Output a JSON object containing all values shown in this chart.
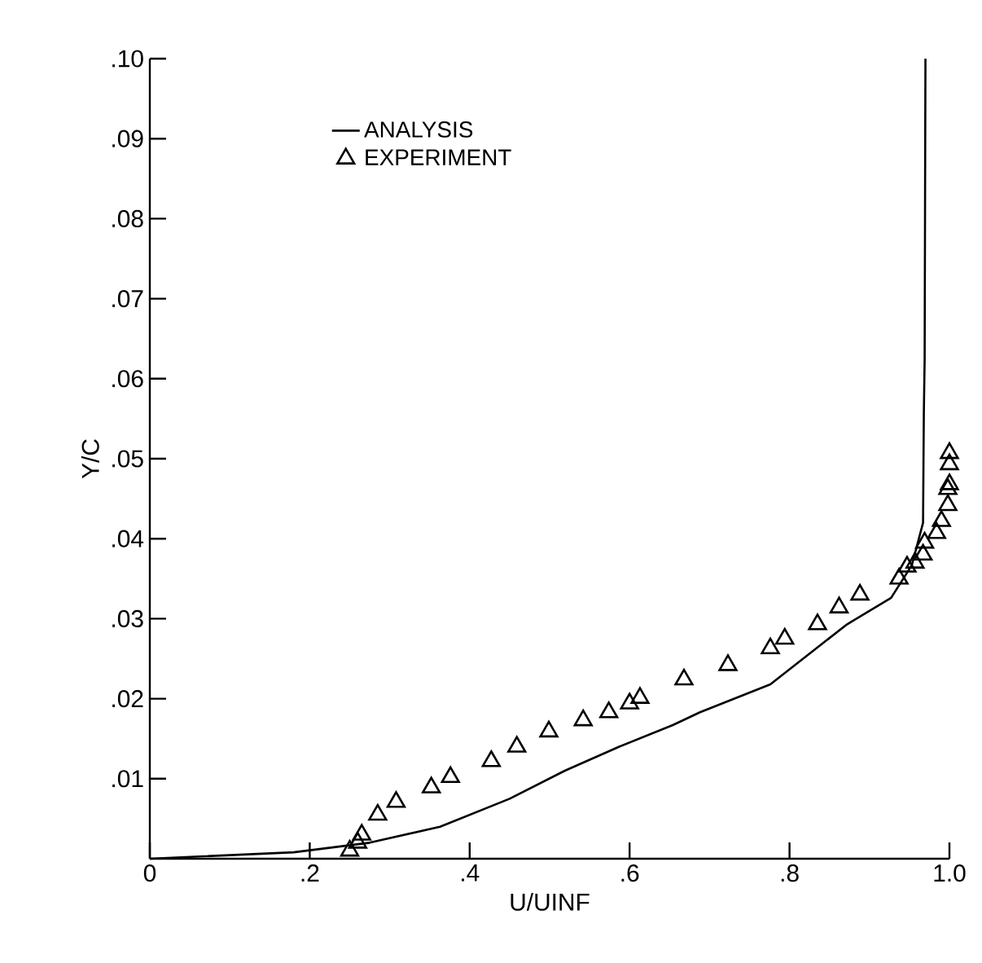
{
  "chart_data": {
    "type": "line",
    "xlabel": "U/UINF",
    "ylabel": "Y/C",
    "xlim": [
      0,
      1.0
    ],
    "ylim": [
      0,
      0.1
    ],
    "xticks": [
      0,
      {
        "value": 0.2,
        "label": ".2"
      },
      {
        "value": 0.4,
        "label": ".4"
      },
      {
        "value": 0.6,
        "label": ".6"
      },
      {
        "value": 0.8,
        "label": ".8"
      },
      {
        "value": 1.0,
        "label": "1.0"
      }
    ],
    "yticks": [
      {
        "value": 0.01,
        "label": ".01"
      },
      {
        "value": 0.02,
        "label": ".02"
      },
      {
        "value": 0.03,
        "label": ".03"
      },
      {
        "value": 0.04,
        "label": ".04"
      },
      {
        "value": 0.05,
        "label": ".05"
      },
      {
        "value": 0.06,
        "label": ".06"
      },
      {
        "value": 0.07,
        "label": ".07"
      },
      {
        "value": 0.08,
        "label": ".08"
      },
      {
        "value": 0.09,
        "label": ".09"
      },
      {
        "value": 0.1,
        "label": ".10"
      }
    ],
    "legend": "top",
    "grid": false,
    "series": [
      {
        "name": "ANALYSIS",
        "color": "#000000",
        "marker": "none",
        "line_style": "solid",
        "x": [
          0,
          0.18,
          0.275,
          0.363,
          0.45,
          0.519,
          0.587,
          0.654,
          0.688,
          0.776,
          0.872,
          0.927,
          0.953,
          0.967,
          0.968,
          0.969,
          0.97
        ],
        "values": [
          0,
          0.0008,
          0.002,
          0.004,
          0.0075,
          0.011,
          0.014,
          0.0167,
          0.0183,
          0.0218,
          0.0293,
          0.0326,
          0.0367,
          0.042,
          0.0558,
          0.0625,
          0.1
        ]
      },
      {
        "name": "EXPERIMENT",
        "type": "scatter",
        "color": "#000000",
        "marker": "triangle",
        "x": [
          0.25,
          0.26,
          0.265,
          0.285,
          0.308,
          0.352,
          0.376,
          0.427,
          0.459,
          0.499,
          0.542,
          0.574,
          0.6,
          0.613,
          0.668,
          0.723,
          0.776,
          0.794,
          0.835,
          0.862,
          0.888,
          0.937,
          0.947,
          0.957,
          0.967,
          0.969,
          0.984,
          0.99,
          0.998,
          0.998,
          1.0,
          1.0,
          1.0
        ],
        "values": [
          0.001,
          0.002,
          0.003,
          0.0055,
          0.0071,
          0.0089,
          0.0102,
          0.0122,
          0.014,
          0.0159,
          0.0173,
          0.0183,
          0.0194,
          0.0201,
          0.0224,
          0.0242,
          0.0263,
          0.0275,
          0.0293,
          0.0314,
          0.033,
          0.035,
          0.0365,
          0.037,
          0.038,
          0.0395,
          0.0407,
          0.0422,
          0.0442,
          0.0462,
          0.0468,
          0.0493,
          0.0507
        ]
      }
    ]
  }
}
